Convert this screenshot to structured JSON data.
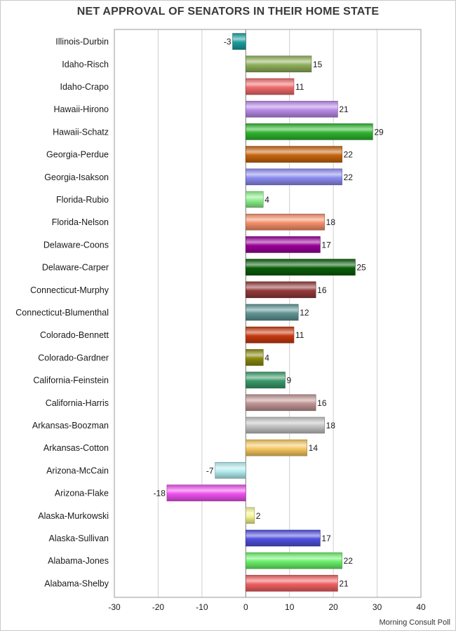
{
  "chart_data": {
    "type": "bar",
    "orientation": "horizontal",
    "title": "NET APPROVAL OF SENATORS IN THEIR HOME STATE",
    "source": "Morning Consult Poll",
    "xlim": [
      -30,
      40
    ],
    "xticks": [
      -30,
      -20,
      -10,
      0,
      10,
      20,
      30,
      40
    ],
    "grid": "vertical",
    "categories": [
      "Illinois-Durbin",
      "Idaho-Risch",
      "Idaho-Crapo",
      "Hawaii-Hirono",
      "Hawaii-Schatz",
      "Georgia-Perdue",
      "Georgia-Isakson",
      "Florida-Rubio",
      "Florida-Nelson",
      "Delaware-Coons",
      "Delaware-Carper",
      "Connecticut-Murphy",
      "Connecticut-Blumenthal",
      "Colorado-Bennett",
      "Colorado-Gardner",
      "California-Feinstein",
      "California-Harris",
      "Arkansas-Boozman",
      "Arkansas-Cotton",
      "Arizona-McCain",
      "Arizona-Flake",
      "Alaska-Murkowski",
      "Alaska-Sullivan",
      "Alabama-Jones",
      "Alabama-Shelby"
    ],
    "values": [
      -3,
      15,
      11,
      21,
      29,
      22,
      22,
      4,
      18,
      17,
      25,
      16,
      12,
      11,
      4,
      9,
      16,
      18,
      14,
      -7,
      -18,
      2,
      17,
      22,
      21
    ],
    "colors": [
      "#1a9e9e",
      "#8fb05a",
      "#f06a6a",
      "#b98ae8",
      "#2fb52f",
      "#c8650e",
      "#8c8cf0",
      "#8cf08c",
      "#f5906a",
      "#990099",
      "#0a5e0a",
      "#933a3a",
      "#5f9494",
      "#c83a10",
      "#8a8a10",
      "#3a9a6a",
      "#c09494",
      "#c4c4c4",
      "#f5c860",
      "#b5eef0",
      "#ee50ee",
      "#f5f590",
      "#5050e0",
      "#6af06a",
      "#f06060"
    ]
  }
}
